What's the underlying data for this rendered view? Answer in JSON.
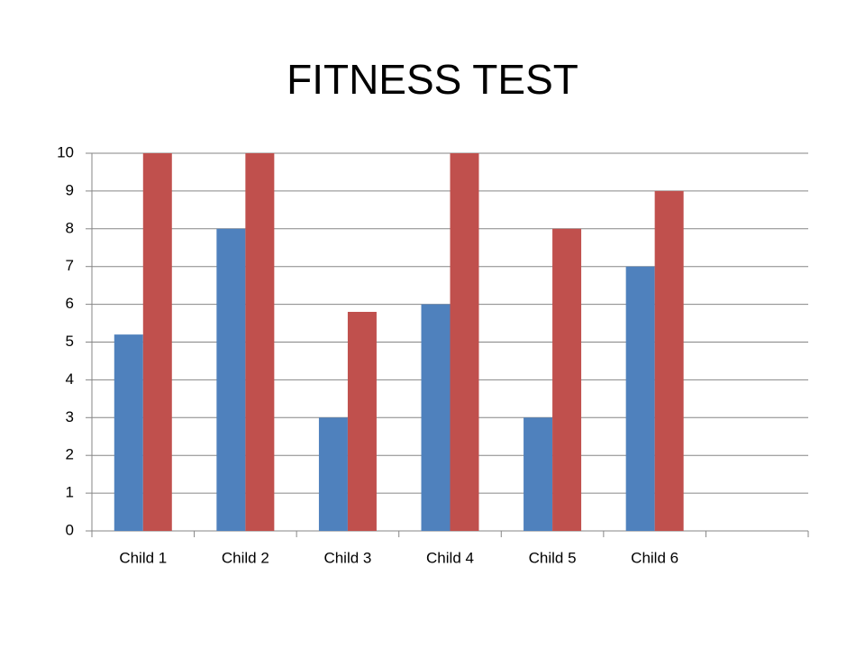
{
  "chart_data": {
    "type": "bar",
    "title": "FITNESS TEST",
    "categories": [
      "Child 1",
      "Child 2",
      "Child 3",
      "Child 4",
      "Child 5",
      "Child 6",
      null
    ],
    "series": [
      {
        "color": "#4f81bd",
        "values": [
          5.2,
          8,
          3,
          6,
          3,
          7,
          null
        ]
      },
      {
        "color": "#c0504d",
        "values": [
          10,
          10,
          5.8,
          10,
          8,
          9,
          null
        ]
      }
    ],
    "ylim": [
      0,
      10
    ],
    "yticks": [
      0,
      1,
      2,
      3,
      4,
      5,
      6,
      7,
      8,
      9,
      10
    ],
    "grid": true
  }
}
